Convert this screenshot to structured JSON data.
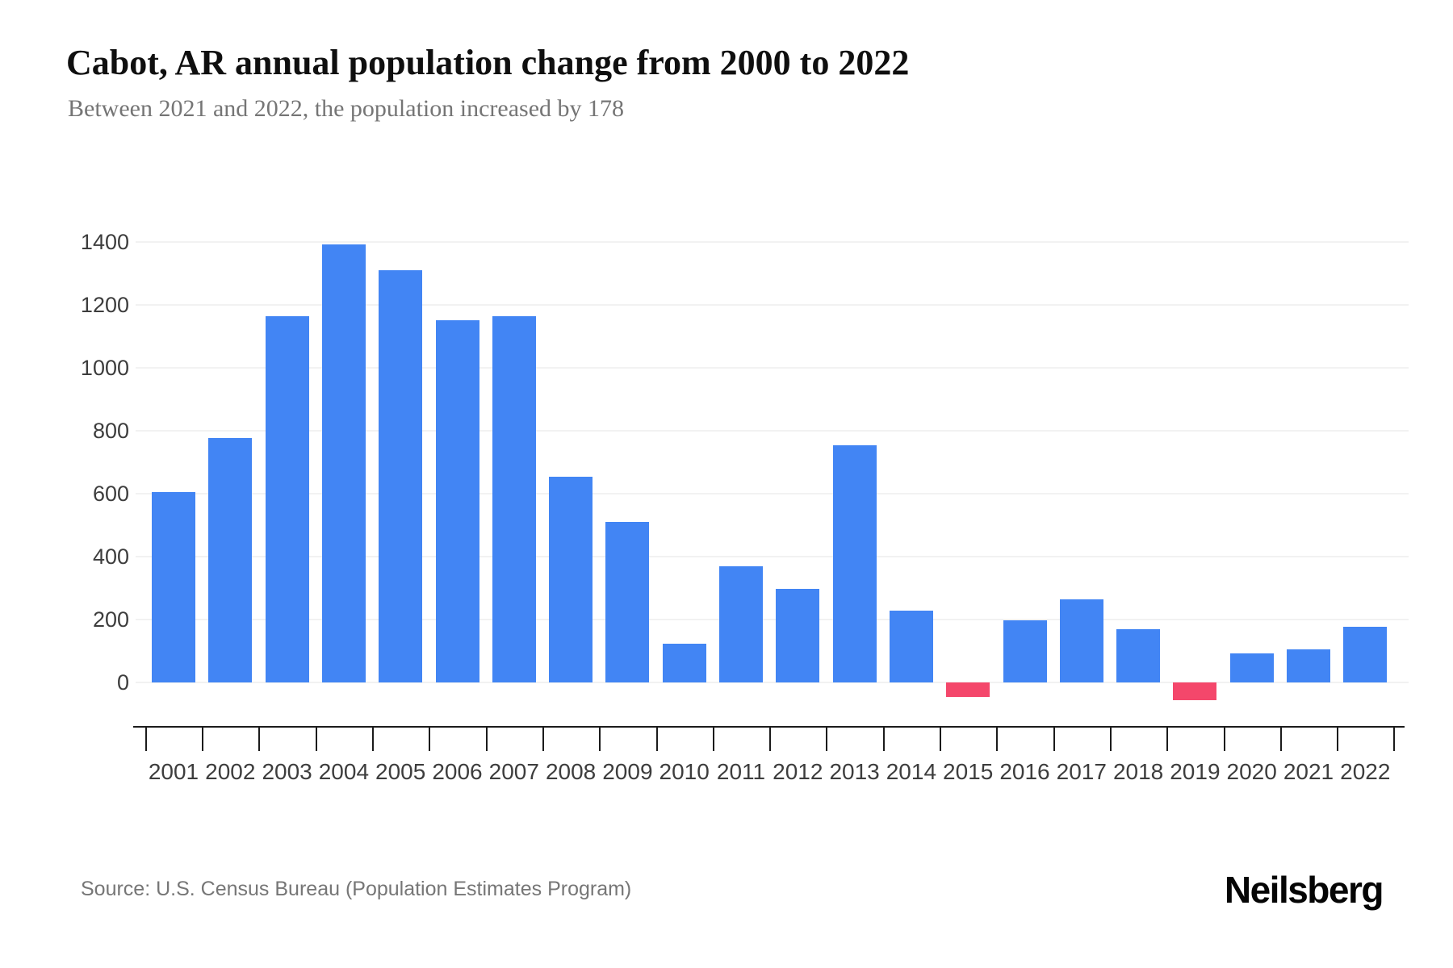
{
  "header": {
    "title": "Cabot, AR annual population change from 2000 to 2022",
    "subtitle": "Between 2021 and 2022, the population increased by 178"
  },
  "footer": {
    "source": "Source: U.S. Census Bureau (Population Estimates Program)",
    "brand": "Neilsberg"
  },
  "chart_data": {
    "type": "bar",
    "title": "Cabot, AR annual population change from 2000 to 2022",
    "subtitle": "Between 2021 and 2022, the population increased by 178",
    "categories": [
      "2001",
      "2002",
      "2003",
      "2004",
      "2005",
      "2006",
      "2007",
      "2008",
      "2009",
      "2010",
      "2011",
      "2012",
      "2013",
      "2014",
      "2015",
      "2016",
      "2017",
      "2018",
      "2019",
      "2020",
      "2021",
      "2022"
    ],
    "values": [
      605,
      778,
      1164,
      1393,
      1310,
      1151,
      1165,
      654,
      509,
      122,
      368,
      297,
      754,
      229,
      -45,
      197,
      264,
      169,
      -57,
      93,
      106,
      178
    ],
    "xlabel": "",
    "ylabel": "",
    "yticks": [
      0,
      200,
      400,
      600,
      800,
      1000,
      1200,
      1400
    ],
    "ylim": [
      -140,
      1400
    ],
    "grid": true,
    "legend": false,
    "colors": {
      "positive_bar": "#4285F4",
      "negative_bar": "#F4476B",
      "gridline": "#f2f2f2",
      "axis": "#1b1b1b",
      "tick_label": "#3d3d3d",
      "title": "#0f0f0f",
      "subtitle": "#757575"
    }
  }
}
